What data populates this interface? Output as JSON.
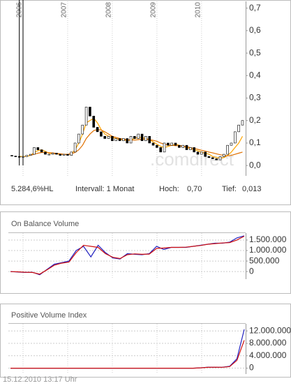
{
  "chart_data": [
    {
      "type": "candlestick",
      "categories": [
        null,
        null,
        null,
        "2006",
        null,
        null,
        null,
        null,
        null,
        null,
        null,
        null,
        null,
        null,
        null,
        "2007",
        null,
        null,
        null,
        null,
        null,
        null,
        null,
        null,
        null,
        null,
        null,
        "2008",
        null,
        null,
        null,
        null,
        null,
        null,
        null,
        null,
        null,
        null,
        null,
        "2009",
        null,
        null,
        null,
        null,
        null,
        null,
        null,
        null,
        null,
        null,
        null,
        "2010",
        null,
        null,
        null,
        null,
        null,
        null,
        null,
        null,
        null,
        null,
        null
      ],
      "open": [
        0.045,
        0.042,
        0.04,
        0.038,
        0.04,
        0.045,
        0.05,
        0.08,
        0.07,
        0.06,
        0.05,
        0.05,
        0.055,
        0.05,
        0.045,
        0.05,
        0.045,
        0.06,
        0.1,
        0.14,
        0.18,
        0.26,
        0.22,
        0.17,
        0.15,
        0.13,
        0.12,
        0.13,
        0.11,
        0.12,
        0.11,
        0.12,
        0.1,
        0.13,
        0.12,
        0.14,
        0.11,
        0.13,
        0.1,
        0.09,
        0.08,
        0.06,
        0.1,
        0.09,
        0.1,
        0.09,
        0.08,
        0.09,
        0.07,
        0.08,
        0.06,
        0.05,
        0.06,
        0.04,
        0.035,
        0.03,
        0.025,
        0.04,
        0.05,
        0.09,
        0.1,
        0.15,
        0.18
      ],
      "high": "0,70",
      "low": "0,013",
      "close": [
        0.042,
        0.04,
        0.038,
        0.04,
        0.045,
        0.05,
        0.08,
        0.07,
        0.06,
        0.05,
        0.05,
        0.055,
        0.05,
        0.045,
        0.05,
        0.045,
        0.06,
        0.1,
        0.14,
        0.18,
        0.26,
        0.22,
        0.17,
        0.15,
        0.13,
        0.12,
        0.13,
        0.11,
        0.12,
        0.11,
        0.12,
        0.1,
        0.13,
        0.12,
        0.14,
        0.11,
        0.13,
        0.1,
        0.09,
        0.08,
        0.06,
        0.1,
        0.09,
        0.1,
        0.09,
        0.08,
        0.09,
        0.07,
        0.08,
        0.06,
        0.05,
        0.06,
        0.04,
        0.035,
        0.03,
        0.025,
        0.04,
        0.05,
        0.09,
        0.1,
        0.15,
        0.18,
        0.2
      ],
      "series": [
        {
          "color": "#ffa500",
          "values": [
            null,
            null,
            0.041,
            0.04,
            0.041,
            0.045,
            0.058,
            0.066,
            0.07,
            0.063,
            0.055,
            0.052,
            0.052,
            0.05,
            0.05,
            0.05,
            0.052,
            0.07,
            0.1,
            0.14,
            0.19,
            0.2,
            0.21,
            0.19,
            0.16,
            0.14,
            0.13,
            0.125,
            0.12,
            0.115,
            0.115,
            0.11,
            0.115,
            0.12,
            0.125,
            0.125,
            0.12,
            0.115,
            0.105,
            0.095,
            0.085,
            0.08,
            0.085,
            0.09,
            0.095,
            0.09,
            0.085,
            0.08,
            0.075,
            0.07,
            0.065,
            0.06,
            0.055,
            0.05,
            0.04,
            0.035,
            0.033,
            0.035,
            0.045,
            0.06,
            0.08,
            0.1,
            0.13
          ]
        },
        {
          "color": "#e07000",
          "values": [
            null,
            null,
            null,
            null,
            null,
            0.045,
            0.05,
            0.055,
            0.058,
            0.058,
            0.057,
            0.056,
            0.054,
            0.052,
            0.05,
            0.05,
            0.052,
            0.058,
            0.07,
            0.09,
            0.12,
            0.14,
            0.155,
            0.16,
            0.158,
            0.15,
            0.14,
            0.13,
            0.125,
            0.12,
            0.117,
            0.115,
            0.113,
            0.113,
            0.115,
            0.117,
            0.117,
            0.115,
            0.112,
            0.108,
            0.1,
            0.095,
            0.09,
            0.09,
            0.088,
            0.088,
            0.086,
            0.084,
            0.08,
            0.076,
            0.072,
            0.068,
            0.064,
            0.06,
            0.056,
            0.052,
            0.048,
            0.045,
            0.043,
            0.045,
            0.05,
            0.055,
            0.06
          ]
        }
      ],
      "ylim": [
        -0.046,
        0.73
      ],
      "yticks": [
        {
          "value": 0,
          "label": "0,0"
        },
        {
          "value": 0.1,
          "label": "0,1"
        },
        {
          "value": 0.2,
          "label": "0,2"
        },
        {
          "value": 0.3,
          "label": "0,3"
        },
        {
          "value": 0.4,
          "label": "0,4"
        },
        {
          "value": 0.5,
          "label": "0,5"
        },
        {
          "value": 0.6,
          "label": "0,6"
        },
        {
          "value": 0.7,
          "label": "0,7"
        }
      ],
      "xgrid": true,
      "watermark": ".comdirect",
      "change": "5.284,6%HL",
      "interval": "Intervall: 1 Monat",
      "high_label": "Hoch:",
      "low_label": "Tief:"
    },
    {
      "type": "line",
      "title": "On Balance Volume",
      "series": [
        {
          "color": "#2020c0",
          "values": [
            0,
            -20000,
            -40000,
            -30000,
            -150000,
            100000,
            350000,
            420000,
            500000,
            1000000,
            1200000,
            700000,
            1250000,
            900000,
            650000,
            600000,
            850000,
            820000,
            800000,
            850000,
            1200000,
            1050000,
            1150000,
            1150000,
            1150000,
            1200000,
            1250000,
            1300000,
            1350000,
            1350000,
            1400000,
            1600000,
            1700000
          ]
        },
        {
          "color": "#d01010",
          "values": [
            0,
            -10000,
            -30000,
            -40000,
            -120000,
            80000,
            300000,
            400000,
            450000,
            900000,
            1250000,
            1200000,
            1150000,
            850000,
            680000,
            620000,
            800000,
            840000,
            820000,
            830000,
            1100000,
            1120000,
            1150000,
            1150000,
            1160000,
            1200000,
            1240000,
            1300000,
            1330000,
            1360000,
            1380000,
            1500000,
            1680000
          ]
        }
      ],
      "ylim": [
        -360000,
        1830000
      ],
      "yticks": [
        0,
        {
          "value": 500000,
          "label": "500.000"
        },
        {
          "value": 1000000,
          "label": "1.000.000"
        },
        {
          "value": 1500000,
          "label": "1.500.000"
        }
      ],
      "grid": true
    },
    {
      "type": "line",
      "title": "Positive Volume Index",
      "series": [
        {
          "color": "#2020c0",
          "values": [
            0,
            0,
            0,
            0,
            0,
            0,
            0,
            0,
            0,
            0,
            0,
            0,
            0,
            0,
            0,
            0,
            0,
            0,
            0,
            0,
            0,
            0,
            0,
            0,
            0,
            0,
            100000,
            300000,
            250000,
            300000,
            600000,
            3000000,
            12500000
          ]
        },
        {
          "color": "#d01010",
          "values": [
            0,
            0,
            0,
            0,
            0,
            0,
            0,
            0,
            0,
            0,
            0,
            0,
            0,
            0,
            0,
            0,
            0,
            0,
            0,
            0,
            0,
            0,
            0,
            0,
            0,
            0,
            100000,
            250000,
            300000,
            280000,
            500000,
            2500000,
            9000000
          ]
        }
      ],
      "ylim": [
        -1900000,
        14300000
      ],
      "yticks": [
        0,
        {
          "value": 4000000,
          "label": "4.000.000"
        },
        {
          "value": 8000000,
          "label": "8.000.000"
        },
        {
          "value": 12000000,
          "label": "12.000.000"
        }
      ],
      "grid": true
    }
  ],
  "footer": "15.12.2010 13:17 Uhr"
}
